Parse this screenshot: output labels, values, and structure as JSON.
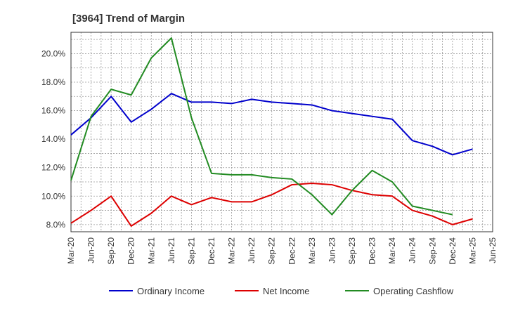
{
  "chart_data": {
    "type": "line",
    "title": "[3964]  Trend of Margin",
    "xlabel": "",
    "ylabel": "",
    "ylim": [
      7.5,
      21.5
    ],
    "yticks": [
      8,
      10,
      12,
      14,
      16,
      18,
      20
    ],
    "ytick_labels": [
      "8.0%",
      "10.0%",
      "12.0%",
      "14.0%",
      "16.0%",
      "18.0%",
      "20.0%"
    ],
    "categories": [
      "Mar-20",
      "Jun-20",
      "Sep-20",
      "Dec-20",
      "Mar-21",
      "Jun-21",
      "Sep-21",
      "Dec-21",
      "Mar-22",
      "Jun-22",
      "Sep-22",
      "Dec-22",
      "Mar-23",
      "Jun-23",
      "Sep-23",
      "Dec-23",
      "Mar-24",
      "Jun-24",
      "Sep-24",
      "Dec-24",
      "Mar-25",
      "Jun-25"
    ],
    "grid": true,
    "legend_position": "bottom",
    "series": [
      {
        "name": "Ordinary Income",
        "color": "#0000cc",
        "values": [
          14.3,
          15.5,
          17.0,
          15.2,
          16.1,
          17.2,
          16.6,
          16.6,
          16.5,
          16.8,
          16.6,
          16.5,
          16.4,
          16.0,
          15.8,
          15.6,
          15.4,
          13.9,
          13.5,
          12.9,
          13.3,
          null
        ]
      },
      {
        "name": "Net Income",
        "color": "#dd0000",
        "values": [
          8.1,
          9.0,
          10.0,
          7.9,
          8.8,
          10.0,
          9.4,
          9.9,
          9.6,
          9.6,
          10.1,
          10.8,
          10.9,
          10.8,
          10.4,
          10.1,
          10.0,
          9.0,
          8.6,
          8.0,
          8.4,
          null
        ]
      },
      {
        "name": "Operating Cashflow",
        "color": "#228b22",
        "values": [
          11.1,
          15.6,
          17.5,
          17.1,
          19.7,
          21.1,
          15.5,
          11.6,
          11.5,
          11.5,
          11.3,
          11.2,
          10.1,
          8.7,
          10.4,
          11.8,
          11.0,
          9.3,
          9.0,
          8.7,
          null,
          null
        ]
      }
    ]
  }
}
